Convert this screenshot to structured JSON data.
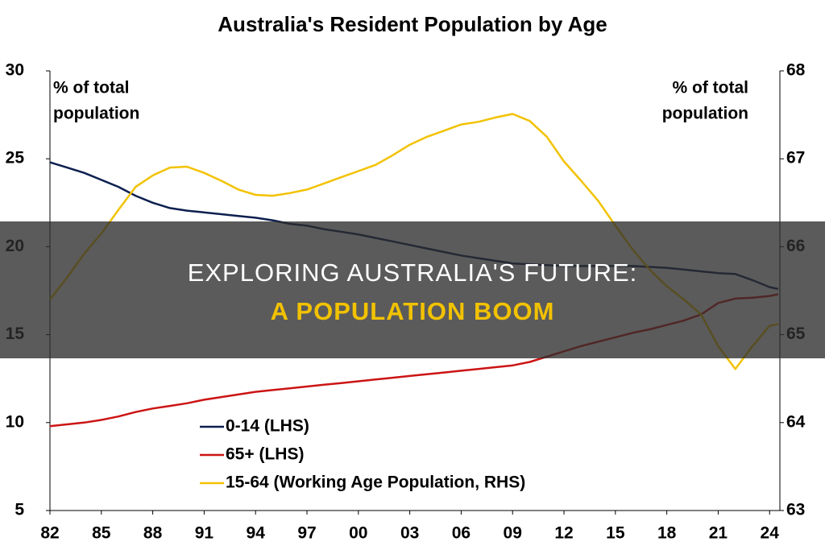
{
  "chart_data": {
    "type": "line",
    "title": "Australia's Resident Population by Age",
    "left_annotation": [
      "% of total",
      "population"
    ],
    "right_annotation": [
      "% of total",
      "population"
    ],
    "x": [
      1982,
      1983,
      1984,
      1985,
      1986,
      1987,
      1988,
      1989,
      1990,
      1991,
      1992,
      1993,
      1994,
      1995,
      1996,
      1997,
      1998,
      1999,
      2000,
      2001,
      2002,
      2003,
      2004,
      2005,
      2006,
      2007,
      2008,
      2009,
      2010,
      2011,
      2012,
      2013,
      2014,
      2015,
      2016,
      2017,
      2018,
      2019,
      2020,
      2021,
      2022,
      2023,
      2024,
      2024.5
    ],
    "series": [
      {
        "name": "0-14 (LHS)",
        "color": "#0c1f4f",
        "values": [
          24.8,
          24.5,
          24.2,
          23.8,
          23.4,
          22.9,
          22.5,
          22.2,
          22.05,
          21.95,
          21.85,
          21.75,
          21.65,
          21.5,
          21.3,
          21.2,
          21.0,
          20.85,
          20.7,
          20.5,
          20.3,
          20.1,
          19.9,
          19.7,
          19.5,
          19.35,
          19.2,
          19.05,
          19.0,
          18.95,
          18.9,
          18.9,
          18.9,
          18.9,
          18.9,
          18.85,
          18.8,
          18.7,
          18.6,
          18.5,
          18.45,
          18.1,
          17.7,
          17.6
        ]
      },
      {
        "name": "65+ (LHS)",
        "color": "#cc1414",
        "values": [
          9.8,
          9.9,
          10.0,
          10.15,
          10.35,
          10.6,
          10.8,
          10.95,
          11.1,
          11.3,
          11.45,
          11.6,
          11.75,
          11.85,
          11.95,
          12.05,
          12.15,
          12.25,
          12.35,
          12.45,
          12.55,
          12.65,
          12.75,
          12.85,
          12.95,
          13.05,
          13.15,
          13.25,
          13.45,
          13.75,
          14.05,
          14.35,
          14.6,
          14.85,
          15.1,
          15.3,
          15.55,
          15.8,
          16.15,
          16.8,
          17.05,
          17.1,
          17.2,
          17.3
        ]
      },
      {
        "name": "15-64 (Working Age Population, RHS)",
        "color": "#f2c200",
        "axis": "y2",
        "values": [
          65.4,
          65.65,
          65.92,
          66.15,
          66.42,
          66.68,
          66.81,
          66.9,
          66.91,
          66.84,
          66.75,
          66.65,
          66.59,
          66.58,
          66.61,
          66.65,
          66.72,
          66.79,
          66.86,
          66.93,
          67.04,
          67.16,
          67.25,
          67.32,
          67.39,
          67.42,
          67.47,
          67.51,
          67.43,
          67.25,
          66.97,
          66.75,
          66.52,
          66.24,
          65.97,
          65.74,
          65.55,
          65.4,
          65.23,
          64.87,
          64.61,
          64.87,
          65.1,
          65.12
        ]
      }
    ],
    "xlim": [
      1982,
      2024.6
    ],
    "xticks": [
      {
        "value": 1982,
        "label": "82"
      },
      {
        "value": 1985,
        "label": "85"
      },
      {
        "value": 1988,
        "label": "88"
      },
      {
        "value": 1991,
        "label": "91"
      },
      {
        "value": 1994,
        "label": "94"
      },
      {
        "value": 1997,
        "label": "97"
      },
      {
        "value": 2000,
        "label": "00"
      },
      {
        "value": 2003,
        "label": "03"
      },
      {
        "value": 2006,
        "label": "06"
      },
      {
        "value": 2009,
        "label": "09"
      },
      {
        "value": 2012,
        "label": "12"
      },
      {
        "value": 2015,
        "label": "15"
      },
      {
        "value": 2018,
        "label": "18"
      },
      {
        "value": 2021,
        "label": "21"
      },
      {
        "value": 2024,
        "label": "24"
      }
    ],
    "ylim": [
      5,
      30
    ],
    "yticks": [
      5,
      10,
      15,
      20,
      25,
      30
    ],
    "y2lim": [
      63,
      68
    ],
    "y2ticks": [
      63,
      64,
      65,
      66,
      67,
      68
    ],
    "grid": false
  },
  "banner": {
    "line1": "EXPLORING AUSTRALIA'S FUTURE:",
    "line2": "A POPULATION BOOM"
  }
}
